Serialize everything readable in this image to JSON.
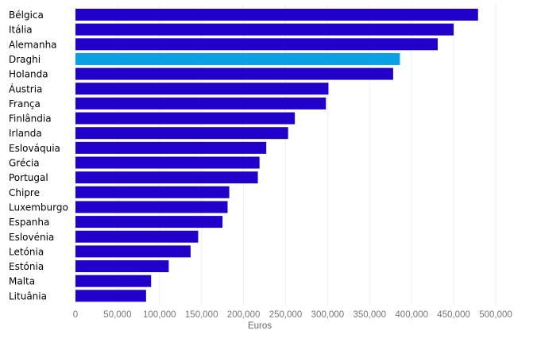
{
  "chart_data": {
    "type": "bar",
    "orientation": "horizontal",
    "categories": [
      "Bélgica",
      "Itália",
      "Alemanha",
      "Draghi",
      "Holanda",
      "Áustria",
      "França",
      "Finlândia",
      "Irlanda",
      "Eslováquia",
      "Grécia",
      "Portugal",
      "Chipre",
      "Luxemburgo",
      "Espanha",
      "Eslovénia",
      "Letónia",
      "Estónia",
      "Malta",
      "Lituânia"
    ],
    "values": [
      479000,
      450000,
      431000,
      386000,
      378000,
      301000,
      298000,
      261000,
      253000,
      227000,
      219000,
      217000,
      183000,
      181000,
      175000,
      146000,
      137000,
      111000,
      90000,
      84000
    ],
    "highlight": "Draghi",
    "xlabel": "Euros",
    "ylabel": "",
    "title": "",
    "xlim": [
      0,
      500000
    ],
    "xticks": [
      "0",
      "50,000",
      "100,000",
      "150,000",
      "200,000",
      "250,000",
      "300,000",
      "350,000",
      "400,000",
      "450,000",
      "500,000"
    ],
    "grid": true,
    "colors": {
      "bar": "#2200cc",
      "highlight": "#0aa0e6",
      "grid": "#eeeeee"
    }
  }
}
